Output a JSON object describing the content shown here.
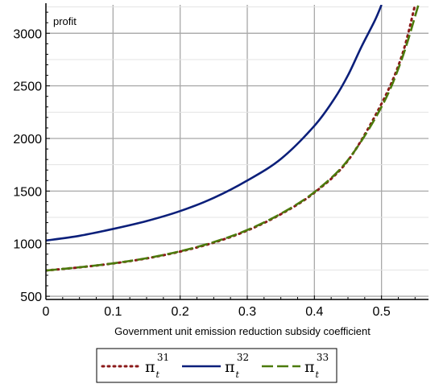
{
  "chart_data": {
    "type": "line",
    "title": "",
    "ylabel": "profit",
    "xlabel": "Government unit emission reduction subsidy coefficient",
    "xlim": [
      0,
      0.57
    ],
    "ylim": [
      470,
      3270
    ],
    "xticks": [
      0,
      0.1,
      0.2,
      0.3,
      0.4,
      0.5
    ],
    "xtick_labels": [
      "0",
      "0.1",
      "0.2",
      "0.3",
      "0.4",
      "0.5"
    ],
    "yticks": [
      500,
      1000,
      1500,
      2000,
      2500,
      3000
    ],
    "ytick_labels": [
      "500",
      "1000",
      "1500",
      "2000",
      "2500",
      "3000"
    ],
    "grid": true,
    "legend_position": "bottom-center",
    "series": [
      {
        "name": "π_t^31",
        "symbol": "π",
        "sub": "t",
        "sup": "31",
        "color": "#8b1a1a",
        "style": "dotted",
        "x": [
          0,
          0.05,
          0.1,
          0.15,
          0.2,
          0.25,
          0.3,
          0.35,
          0.4,
          0.45,
          0.5,
          0.53,
          0.55
        ],
        "y": [
          745,
          775,
          812,
          860,
          925,
          1010,
          1125,
          1280,
          1485,
          1790,
          2330,
          2780,
          3270
        ]
      },
      {
        "name": "π_t^32",
        "symbol": "π",
        "sub": "t",
        "sup": "32",
        "color": "#0b1f7a",
        "style": "solid",
        "x": [
          0,
          0.05,
          0.1,
          0.15,
          0.2,
          0.25,
          0.3,
          0.35,
          0.4,
          0.43,
          0.45,
          0.47,
          0.49,
          0.5
        ],
        "y": [
          1030,
          1075,
          1140,
          1215,
          1310,
          1435,
          1600,
          1805,
          2120,
          2380,
          2600,
          2870,
          3120,
          3270
        ]
      },
      {
        "name": "π_t^33",
        "symbol": "π",
        "sub": "t",
        "sup": "33",
        "color": "#4c7a0c",
        "style": "dashed",
        "x": [
          0,
          0.05,
          0.1,
          0.15,
          0.2,
          0.25,
          0.3,
          0.35,
          0.4,
          0.45,
          0.5,
          0.53,
          0.555
        ],
        "y": [
          745,
          776,
          813,
          862,
          928,
          1015,
          1130,
          1285,
          1490,
          1795,
          2300,
          2750,
          3270
        ]
      }
    ]
  }
}
